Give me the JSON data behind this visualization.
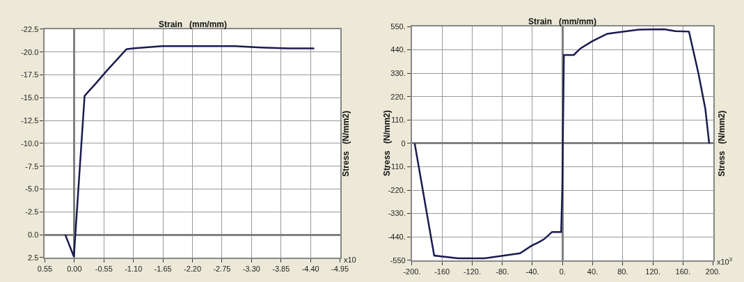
{
  "chart_data": [
    {
      "type": "line",
      "xlabel": "Strain   (mm/mm)",
      "ylabel": "Stress   (N/mm2)",
      "annotations": [
        "x10"
      ],
      "grid": true,
      "marker": "none",
      "line_style": "solid",
      "xlim": [
        0.55,
        -4.95
      ],
      "ylim": [
        2.5,
        -22.5
      ],
      "xticks": [
        {
          "value": 0.55,
          "label": "0.55"
        },
        {
          "value": 0,
          "label": "0.00"
        },
        {
          "value": -0.55,
          "label": "-0.55"
        },
        {
          "value": -1.1,
          "label": "-1.10"
        },
        {
          "value": -1.65,
          "label": "-1.65"
        },
        {
          "value": -2.2,
          "label": "-2.20"
        },
        {
          "value": -2.75,
          "label": "-2.75"
        },
        {
          "value": -3.3,
          "label": "-3.30"
        },
        {
          "value": -3.85,
          "label": "-3.85"
        },
        {
          "value": -4.4,
          "label": "-4.40"
        },
        {
          "value": -4.95,
          "label": "-4.95"
        }
      ],
      "yticks": [
        {
          "value": 2.5,
          "label": "2.5"
        },
        {
          "value": 0,
          "label": "0.0"
        },
        {
          "value": -2.5,
          "label": "-2.5"
        },
        {
          "value": -5,
          "label": "-5.0"
        },
        {
          "value": -7.5,
          "label": "-7.5"
        },
        {
          "value": -10,
          "label": "-10.0"
        },
        {
          "value": -12.5,
          "label": "-12.5"
        },
        {
          "value": -15,
          "label": "-15.0"
        },
        {
          "value": -17.5,
          "label": "-17.5"
        },
        {
          "value": -20,
          "label": "-20.0"
        },
        {
          "value": -22.5,
          "label": "-22.5"
        }
      ],
      "series": [
        {
          "color": "#1a1a50",
          "x": [
            0.17,
            0.01,
            -0.19,
            -0.28,
            -0.39,
            -0.58,
            -0.97,
            -1.09,
            -1.63,
            -2.99,
            -3.48,
            -3.98,
            -4.47
          ],
          "values": [
            0,
            2.4,
            -15.2,
            -15.8,
            -16.5,
            -17.8,
            -20.3,
            -20.4,
            -20.65,
            -20.65,
            -20.5,
            -20.4,
            -20.4
          ]
        }
      ]
    },
    {
      "type": "line",
      "xlabel": "Strain   (mm/mm)",
      "ylabel": "Stress   (N/mm2)",
      "y2label": "Stress   (N/mm2)",
      "annotations": [
        "x10$^{3}$"
      ],
      "grid": true,
      "marker": "none",
      "line_style": "solid",
      "xlim": [
        -200,
        200
      ],
      "ylim": [
        -550,
        550
      ],
      "xticks": [
        {
          "value": -200,
          "label": "-200."
        },
        {
          "value": -160,
          "label": "-160"
        },
        {
          "value": -120,
          "label": "-120."
        },
        {
          "value": -80,
          "label": "-80."
        },
        {
          "value": -40,
          "label": "-40."
        },
        {
          "value": 0,
          "label": "0."
        },
        {
          "value": 40,
          "label": "40."
        },
        {
          "value": 80,
          "label": "80."
        },
        {
          "value": 120,
          "label": "120."
        },
        {
          "value": 160,
          "label": "160."
        },
        {
          "value": 200,
          "label": "200."
        }
      ],
      "yticks": [
        {
          "value": -550,
          "label": "-550"
        },
        {
          "value": -440,
          "label": "-440."
        },
        {
          "value": -330,
          "label": "-330."
        },
        {
          "value": -220,
          "label": "-220."
        },
        {
          "value": -110,
          "label": "-110."
        },
        0,
        {
          "value": 110,
          "label": "110."
        },
        {
          "value": 220,
          "label": "220."
        },
        {
          "value": 330,
          "label": "330."
        },
        {
          "value": 440,
          "label": "440."
        },
        {
          "value": 550,
          "label": "550."
        }
      ],
      "series": [
        {
          "color": "#1a1a50",
          "x": [
            -196.4,
            -170.5,
            -138.6,
            -103.6,
            -56.5,
            -40.7,
            -32,
            -24.6,
            -14,
            -1.8,
            -0.3,
            1.8,
            14.9,
            24,
            39.2,
            59,
            68,
            101.5,
            135,
            150,
            168,
            180.6,
            189.7,
            194.8
          ],
          "values": [
            0,
            -528,
            -541,
            -541,
            -517,
            -481,
            -466,
            -451,
            -417,
            -417,
            -211,
            416,
            416,
            447,
            480,
            515,
            520,
            535,
            537,
            528,
            526,
            328,
            163,
            0
          ]
        }
      ]
    }
  ]
}
